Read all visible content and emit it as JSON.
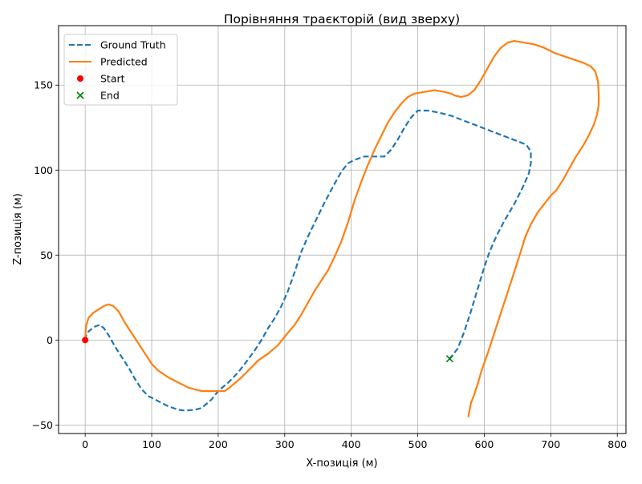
{
  "chart_data": {
    "type": "line",
    "title": "Порівняння траєкторій (вид зверху)",
    "xlabel": "X-позиція (м)",
    "ylabel": "Z-позиція (м)",
    "xlim": [
      -40,
      813
    ],
    "ylim": [
      -55,
      185
    ],
    "x_ticks": [
      0,
      100,
      200,
      300,
      400,
      500,
      600,
      700,
      800
    ],
    "y_ticks": [
      -50,
      0,
      50,
      100,
      150
    ],
    "x_tick_labels": [
      "0",
      "100",
      "200",
      "300",
      "400",
      "500",
      "600",
      "700",
      "800"
    ],
    "y_tick_labels": [
      "−50",
      "0",
      "50",
      "100",
      "150"
    ],
    "grid": true,
    "legend_position": "upper-left",
    "legend": [
      {
        "label": "Ground Truth",
        "kind": "dashed-line",
        "color": "#1f77b4"
      },
      {
        "label": "Predicted",
        "kind": "solid-line",
        "color": "#ff7f0e"
      },
      {
        "label": "Start",
        "kind": "circle-marker",
        "color": "#ff0000"
      },
      {
        "label": "End",
        "kind": "x-marker",
        "color": "#008000"
      }
    ],
    "series": [
      {
        "name": "Ground Truth",
        "color": "#1f77b4",
        "style": "dashed",
        "points": [
          [
            0,
            0
          ],
          [
            2,
            4
          ],
          [
            8,
            6
          ],
          [
            15,
            8
          ],
          [
            22,
            9
          ],
          [
            28,
            7
          ],
          [
            35,
            3
          ],
          [
            45,
            -4
          ],
          [
            55,
            -10
          ],
          [
            65,
            -16
          ],
          [
            75,
            -23
          ],
          [
            85,
            -29
          ],
          [
            95,
            -33
          ],
          [
            110,
            -36
          ],
          [
            125,
            -39
          ],
          [
            140,
            -41
          ],
          [
            150,
            -41.5
          ],
          [
            165,
            -41
          ],
          [
            175,
            -40
          ],
          [
            190,
            -35
          ],
          [
            200,
            -30
          ],
          [
            215,
            -25
          ],
          [
            230,
            -19
          ],
          [
            240,
            -14
          ],
          [
            255,
            -6
          ],
          [
            265,
            0
          ],
          [
            275,
            7
          ],
          [
            285,
            13
          ],
          [
            295,
            20
          ],
          [
            305,
            29
          ],
          [
            315,
            40
          ],
          [
            325,
            52
          ],
          [
            335,
            61
          ],
          [
            345,
            69
          ],
          [
            360,
            81
          ],
          [
            375,
            92
          ],
          [
            385,
            99
          ],
          [
            395,
            104
          ],
          [
            405,
            106
          ],
          [
            420,
            108
          ],
          [
            435,
            108
          ],
          [
            450,
            108
          ],
          [
            460,
            112
          ],
          [
            470,
            118
          ],
          [
            480,
            125
          ],
          [
            490,
            131
          ],
          [
            500,
            135
          ],
          [
            515,
            135
          ],
          [
            530,
            134
          ],
          [
            550,
            132
          ],
          [
            570,
            129
          ],
          [
            590,
            126
          ],
          [
            610,
            123
          ],
          [
            630,
            120
          ],
          [
            650,
            117
          ],
          [
            663,
            115
          ],
          [
            670,
            111
          ],
          [
            670,
            104
          ],
          [
            667,
            98
          ],
          [
            658,
            90
          ],
          [
            645,
            80
          ],
          [
            630,
            70
          ],
          [
            618,
            61
          ],
          [
            608,
            52
          ],
          [
            600,
            43
          ],
          [
            590,
            30
          ],
          [
            580,
            17
          ],
          [
            570,
            5
          ],
          [
            560,
            -5
          ],
          [
            548,
            -11
          ]
        ]
      },
      {
        "name": "Predicted",
        "color": "#ff7f0e",
        "style": "solid",
        "points": [
          [
            0,
            0
          ],
          [
            1,
            8
          ],
          [
            5,
            13
          ],
          [
            12,
            16
          ],
          [
            20,
            18
          ],
          [
            28,
            20
          ],
          [
            35,
            21
          ],
          [
            42,
            20
          ],
          [
            50,
            17
          ],
          [
            60,
            10
          ],
          [
            70,
            4
          ],
          [
            80,
            -2
          ],
          [
            90,
            -8
          ],
          [
            100,
            -14
          ],
          [
            110,
            -18
          ],
          [
            125,
            -22
          ],
          [
            140,
            -25
          ],
          [
            155,
            -28
          ],
          [
            165,
            -29
          ],
          [
            175,
            -30
          ],
          [
            190,
            -30
          ],
          [
            210,
            -30
          ],
          [
            220,
            -27
          ],
          [
            235,
            -22
          ],
          [
            250,
            -16
          ],
          [
            260,
            -12
          ],
          [
            275,
            -8
          ],
          [
            290,
            -3
          ],
          [
            300,
            2
          ],
          [
            315,
            9
          ],
          [
            325,
            15
          ],
          [
            335,
            22
          ],
          [
            345,
            29
          ],
          [
            355,
            35
          ],
          [
            365,
            41
          ],
          [
            375,
            49
          ],
          [
            385,
            58
          ],
          [
            395,
            69
          ],
          [
            405,
            82
          ],
          [
            415,
            93
          ],
          [
            425,
            103
          ],
          [
            435,
            112
          ],
          [
            445,
            120
          ],
          [
            455,
            128
          ],
          [
            465,
            134
          ],
          [
            475,
            139
          ],
          [
            485,
            143
          ],
          [
            495,
            145
          ],
          [
            510,
            146
          ],
          [
            525,
            147
          ],
          [
            540,
            146
          ],
          [
            550,
            145
          ],
          [
            555,
            144
          ],
          [
            565,
            143
          ],
          [
            575,
            144
          ],
          [
            585,
            147
          ],
          [
            595,
            153
          ],
          [
            605,
            160
          ],
          [
            615,
            167
          ],
          [
            625,
            172
          ],
          [
            635,
            175
          ],
          [
            645,
            176
          ],
          [
            660,
            175
          ],
          [
            675,
            174
          ],
          [
            690,
            172
          ],
          [
            705,
            169
          ],
          [
            720,
            167
          ],
          [
            735,
            165
          ],
          [
            750,
            163
          ],
          [
            760,
            161
          ],
          [
            767,
            158
          ],
          [
            771,
            152
          ],
          [
            772,
            145
          ],
          [
            772,
            138
          ],
          [
            769,
            132
          ],
          [
            765,
            127
          ],
          [
            758,
            121
          ],
          [
            748,
            114
          ],
          [
            738,
            108
          ],
          [
            728,
            101
          ],
          [
            718,
            94
          ],
          [
            708,
            88
          ],
          [
            700,
            85
          ],
          [
            690,
            80
          ],
          [
            680,
            75
          ],
          [
            670,
            68
          ],
          [
            662,
            61
          ],
          [
            654,
            51
          ],
          [
            645,
            40
          ],
          [
            635,
            28
          ],
          [
            625,
            16
          ],
          [
            615,
            4
          ],
          [
            605,
            -8
          ],
          [
            596,
            -18
          ],
          [
            590,
            -26
          ],
          [
            584,
            -33
          ],
          [
            580,
            -37
          ],
          [
            576,
            -45
          ]
        ]
      }
    ],
    "markers": [
      {
        "name": "Start",
        "shape": "circle",
        "color": "#ff0000",
        "x": 0,
        "y": 0
      },
      {
        "name": "End",
        "shape": "x",
        "color": "#008000",
        "x": 548,
        "y": -11
      }
    ]
  }
}
